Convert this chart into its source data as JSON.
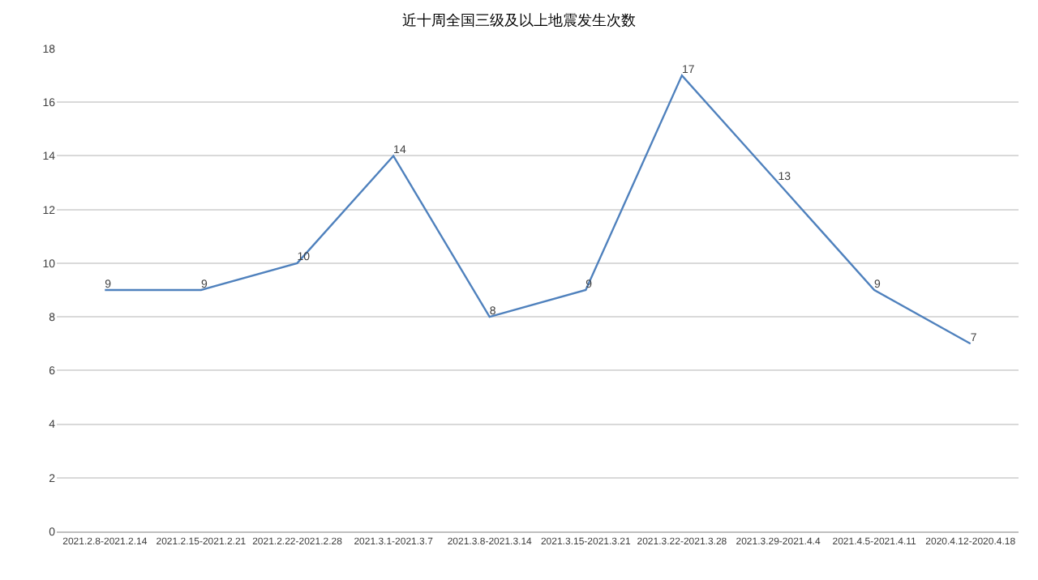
{
  "chart_data": {
    "type": "line",
    "title": "近十周全国三级及以上地震发生次数",
    "categories": [
      "2021.2.8-2021.2.14",
      "2021.2.15-2021.2.21",
      "2021.2.22-2021.2.28",
      "2021.3.1-2021.3.7",
      "2021.3.8-2021.3.14",
      "2021.3.15-2021.3.21",
      "2021.3.22-2021.3.28",
      "2021.3.29-2021.4.4",
      "2021.4.5-2021.4.11",
      "2020.4.12-2020.4.18"
    ],
    "series": [
      {
        "color": "#4f81bd",
        "values": [
          9,
          9,
          10,
          14,
          8,
          9,
          17,
          13,
          9,
          7
        ]
      }
    ],
    "ylim": [
      0,
      18
    ],
    "yticks": [
      0,
      2,
      4,
      6,
      8,
      10,
      12,
      14,
      16,
      18
    ],
    "grid": "y",
    "data_labels": true,
    "legend": false,
    "marker": "none",
    "line_style": "solid"
  }
}
